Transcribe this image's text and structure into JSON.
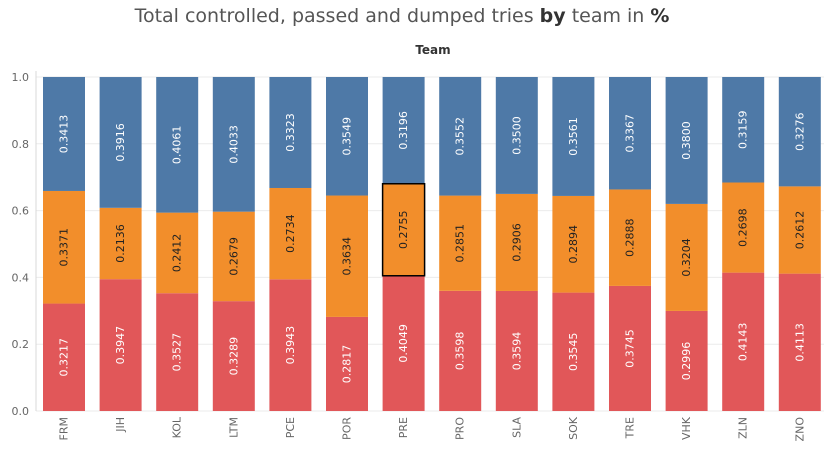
{
  "title": {
    "part1": "Total controlled, passed and dumped tries ",
    "part2": "by",
    "part3": " team in ",
    "part4": "%"
  },
  "chart_data": {
    "type": "bar",
    "stacked": true,
    "title": "Total controlled, passed and dumped tries by team in %",
    "header": "Team",
    "categories": [
      "FRM",
      "JIH",
      "KOL",
      "LTM",
      "PCE",
      "POR",
      "PRE",
      "PRO",
      "SLA",
      "SOK",
      "TRE",
      "VHK",
      "ZLN",
      "ZNO"
    ],
    "series": [
      {
        "color": "#e15759",
        "values": [
          0.3217,
          0.3947,
          0.3527,
          0.3289,
          0.3943,
          0.2817,
          0.4049,
          0.3598,
          0.3594,
          0.3545,
          0.3745,
          0.2996,
          0.4143,
          0.4113
        ],
        "labels": [
          "0.3217",
          "0.3947",
          "0.3527",
          "0.3289",
          "0.3943",
          "0.2817",
          "0.4049",
          "0.3598",
          "0.3594",
          "0.3545",
          "0.3745",
          "0.2996",
          "0.4143",
          "0.4113"
        ]
      },
      {
        "color": "#f28e2b",
        "values": [
          0.3371,
          0.2136,
          0.2412,
          0.2679,
          0.2734,
          0.3634,
          0.2755,
          0.2851,
          0.2906,
          0.2894,
          0.2888,
          0.3204,
          0.2698,
          0.2612
        ],
        "labels": [
          "0.3371",
          "0.2136",
          "0.2412",
          "0.2679",
          "0.2734",
          "0.3634",
          "0.2755",
          "0.2851",
          "0.2906",
          "0.2894",
          "0.2888",
          "0.3204",
          "0.2698",
          "0.2612"
        ]
      },
      {
        "color": "#4e79a7",
        "values": [
          0.3413,
          0.3916,
          0.4061,
          0.4033,
          0.3323,
          0.3549,
          0.3196,
          0.3552,
          0.35,
          0.3561,
          0.3367,
          0.38,
          0.3159,
          0.3276
        ],
        "labels": [
          "0.3413",
          "0.3916",
          "0.4061",
          "0.4033",
          "0.3323",
          "0.3549",
          "0.3196",
          "0.3552",
          "0.3500",
          "0.3561",
          "0.3367",
          "0.3800",
          "0.3159",
          "0.3276"
        ]
      }
    ],
    "ylim": [
      0,
      1
    ],
    "yticks": [
      "0.0",
      "0.2",
      "0.4",
      "0.6",
      "0.8",
      "1.0"
    ],
    "highlighted": {
      "category": "PRE",
      "series_index": 1
    },
    "grid": true
  }
}
